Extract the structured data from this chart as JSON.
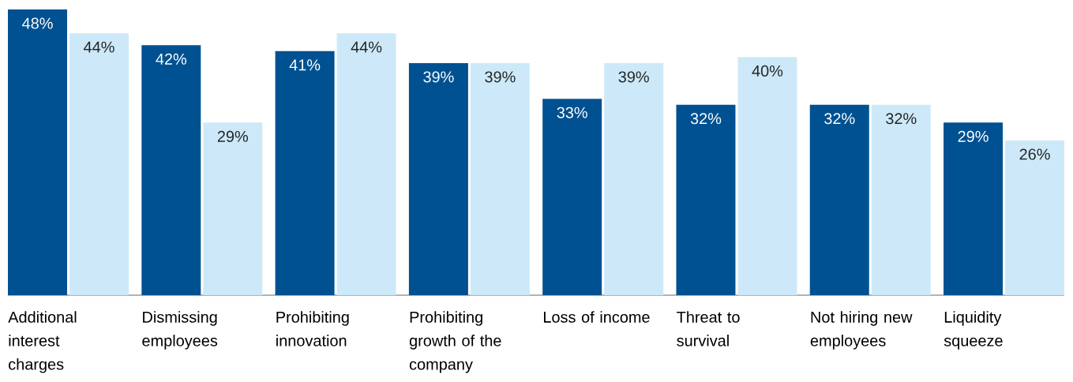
{
  "chart_data": {
    "type": "bar",
    "categories": [
      "Additional interest charges",
      "Dismissing employees",
      "Prohibiting innovation",
      "Prohibiting growth of the company",
      "Loss of income",
      "Threat to survival",
      "Not hiring new employees",
      "Liquidity squeeze"
    ],
    "series": [
      {
        "color": "#005191",
        "values": [
          48,
          42,
          41,
          39,
          33,
          32,
          32,
          29
        ],
        "value_labels": [
          "48%",
          "42%",
          "41%",
          "39%",
          "33%",
          "32%",
          "32%",
          "29%"
        ]
      },
      {
        "color": "#cde9f9",
        "values": [
          44,
          29,
          44,
          39,
          39,
          40,
          32,
          26
        ],
        "value_labels": [
          "44%",
          "29%",
          "44%",
          "39%",
          "39%",
          "40%",
          "32%",
          "26%"
        ]
      }
    ],
    "ylim": [
      0,
      48
    ],
    "tick_labels": "x"
  }
}
